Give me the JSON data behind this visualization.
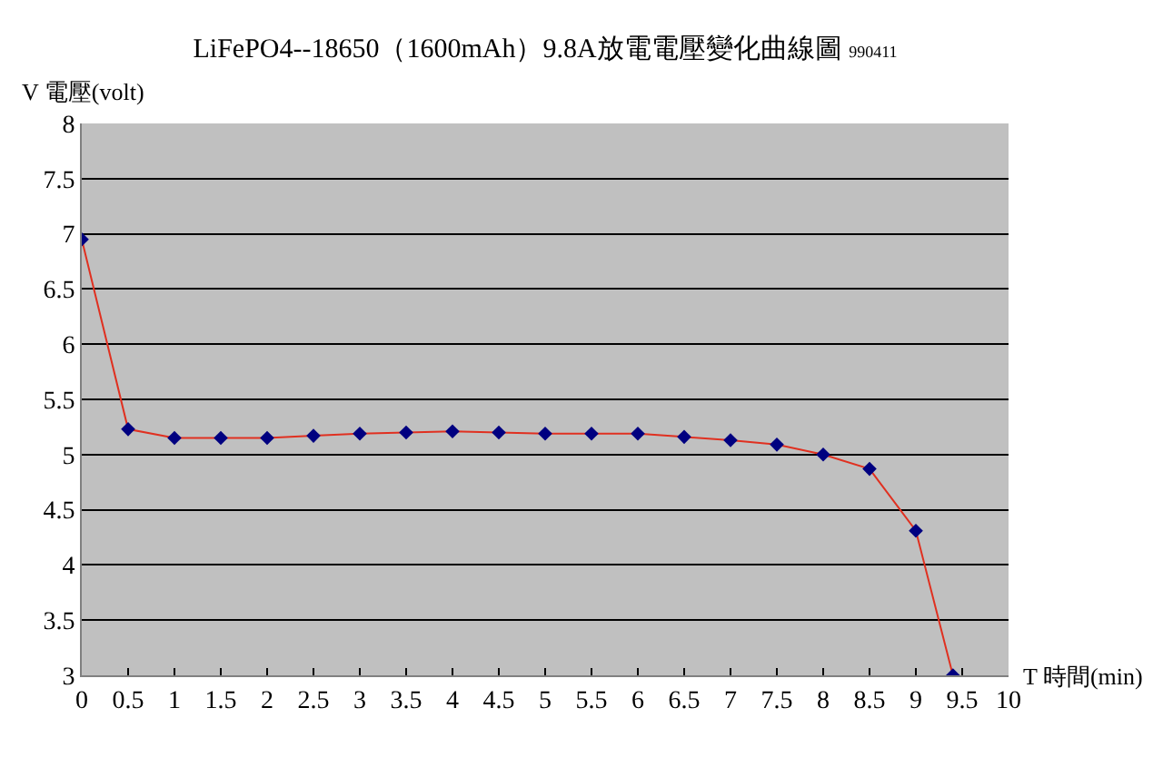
{
  "chart_data": {
    "type": "line",
    "title": "LiFePO4--18650（1600mAh）9.8A放電電壓變化曲線圖",
    "subtitle": "990411",
    "xlabel": "T 時間(min)",
    "ylabel": "V 電壓(volt)",
    "x": [
      0,
      0.5,
      1,
      1.5,
      2,
      2.5,
      3,
      3.5,
      4,
      4.5,
      5,
      5.5,
      6,
      6.5,
      7,
      7.5,
      8,
      8.5,
      9,
      9.4
    ],
    "series": [
      {
        "color": "#e03020",
        "values": [
          6.95,
          5.23,
          5.15,
          5.15,
          5.15,
          5.17,
          5.19,
          5.2,
          5.21,
          5.2,
          5.19,
          5.19,
          5.19,
          5.16,
          5.13,
          5.09,
          5.0,
          4.87,
          4.31,
          3.0
        ]
      }
    ],
    "xlim": [
      0,
      10
    ],
    "xticks": [
      0,
      0.5,
      1,
      1.5,
      2,
      2.5,
      3,
      3.5,
      4,
      4.5,
      5,
      5.5,
      6,
      6.5,
      7,
      7.5,
      8,
      8.5,
      9,
      9.5,
      10
    ],
    "ylim": [
      3,
      8
    ],
    "yticks": [
      3,
      3.5,
      4,
      4.5,
      5,
      5.5,
      6,
      6.5,
      7,
      7.5,
      8
    ],
    "grid": "y",
    "marker": "diamond",
    "line_style": "solid"
  }
}
